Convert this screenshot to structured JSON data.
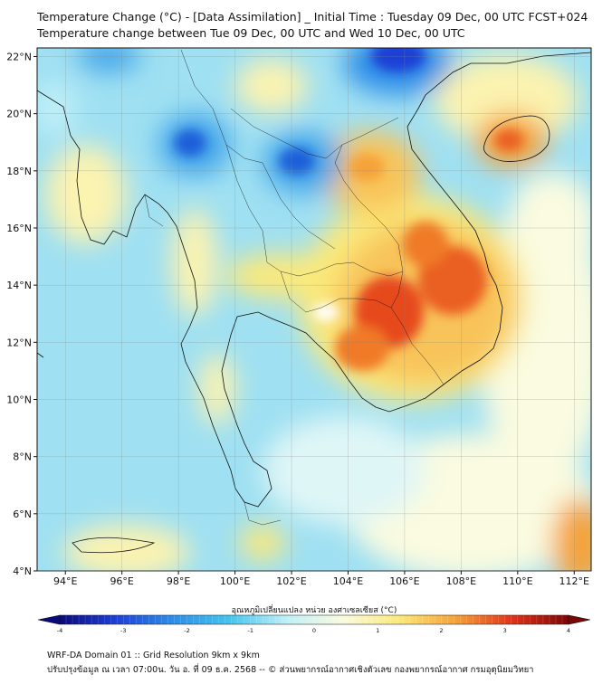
{
  "header": {
    "title_line1": "Temperature Change (°C) - [Data Assimilation] _ Initial Time : Tuesday 09 Dec, 00 UTC FCST+024",
    "title_line2": "Temperature change between Tue 09 Dec, 00 UTC and Wed 10 Dec, 00 UTC"
  },
  "map": {
    "lat_labels": [
      "22°N",
      "20°N",
      "18°N",
      "16°N",
      "14°N",
      "12°N",
      "10°N",
      "8°N",
      "6°N",
      "4°N"
    ],
    "lat_values": [
      22,
      20,
      18,
      16,
      14,
      12,
      10,
      8,
      6,
      4
    ],
    "lon_labels": [
      "94°E",
      "96°E",
      "98°E",
      "100°E",
      "102°E",
      "104°E",
      "106°E",
      "108°E",
      "110°E",
      "112°E"
    ],
    "lon_values": [
      94,
      96,
      98,
      100,
      102,
      104,
      106,
      108,
      110,
      112
    ],
    "lat_range": [
      4,
      22.3
    ],
    "lon_range": [
      93,
      112.6
    ],
    "background_color": "#9fe0f2",
    "features": [
      {
        "type": "warm",
        "lon": 106.8,
        "lat": 13.0,
        "value": 3.1
      },
      {
        "type": "warm",
        "lon": 108.0,
        "lat": 14.0,
        "value": 3.0
      },
      {
        "type": "warm",
        "lon": 105.0,
        "lat": 17.8,
        "value": 2.3
      },
      {
        "type": "warm",
        "lon": 109.6,
        "lat": 18.9,
        "value": 2.5
      },
      {
        "type": "warm",
        "lon": 112.3,
        "lat": 5.2,
        "value": 2.4
      },
      {
        "type": "cold",
        "lon": 105.5,
        "lat": 22.0,
        "value": -3.5
      },
      {
        "type": "cold",
        "lon": 98.6,
        "lat": 18.8,
        "value": -3.0
      },
      {
        "type": "cold",
        "lon": 102.2,
        "lat": 18.2,
        "value": -3.0
      },
      {
        "type": "cold",
        "lon": 95.8,
        "lat": 22.0,
        "value": -2.5
      }
    ]
  },
  "colorbar": {
    "label": "อุณหภูมิเปลี่ยนแปลง หน่วย องศาเซลเซียส (°C)",
    "ticks": [
      "-4",
      "-3",
      "-2",
      "-1",
      "0",
      "1",
      "2",
      "3",
      "4"
    ],
    "min": -4,
    "max": 4,
    "colors": [
      "#0a0a7a",
      "#1f3fd6",
      "#2d8ee8",
      "#44c4ee",
      "#bfeff8",
      "#fafbe0",
      "#fbe97a",
      "#f5a238",
      "#e0321a",
      "#7a0606"
    ]
  },
  "footer": {
    "line1": "WRF-DA Domain 01 :: Grid Resolution 9km x 9km",
    "line2": "ปรับปรุงข้อมูล ณ เวลา 07:00น. วัน อ. ที่ 09 ธ.ค. 2568 -- © ส่วนพยากรณ์อากาศเชิงตัวเลข กองพยากรณ์อากาศ กรมอุตุนิยมวิทยา"
  }
}
